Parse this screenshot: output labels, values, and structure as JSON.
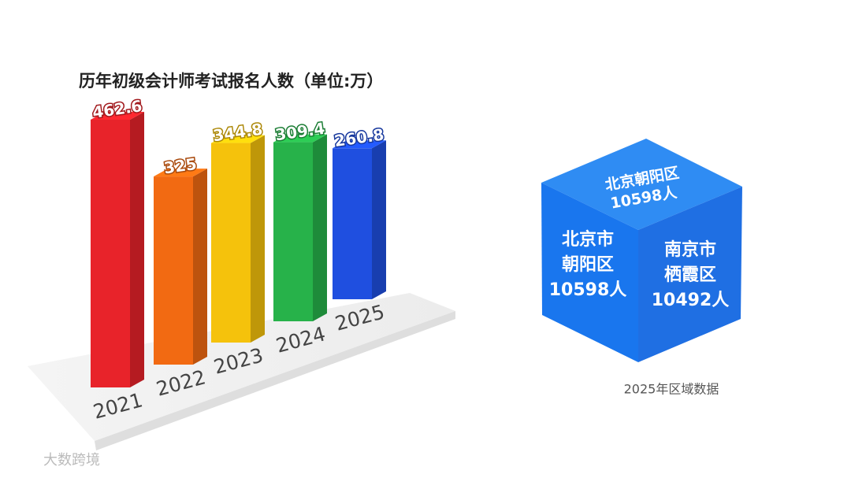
{
  "chart_data": {
    "type": "bar",
    "title": "历年初级会计师考试报名人数（单位:万）",
    "categories": [
      "2021",
      "2022",
      "2023",
      "2024",
      "2025"
    ],
    "values": [
      462.6,
      325,
      344.8,
      309.4,
      260.8
    ],
    "colors": [
      "#e8232a",
      "#f26a12",
      "#f5c20c",
      "#27b24a",
      "#1f4fe0"
    ]
  },
  "cube": {
    "top": [
      "北京朝阳区",
      "10598人"
    ],
    "left": [
      "北京市",
      "朝阳区",
      "10598人"
    ],
    "right": [
      "南京市",
      "栖霞区",
      "10492人"
    ],
    "caption": "2025年区域数据"
  },
  "watermark": "大数跨境"
}
